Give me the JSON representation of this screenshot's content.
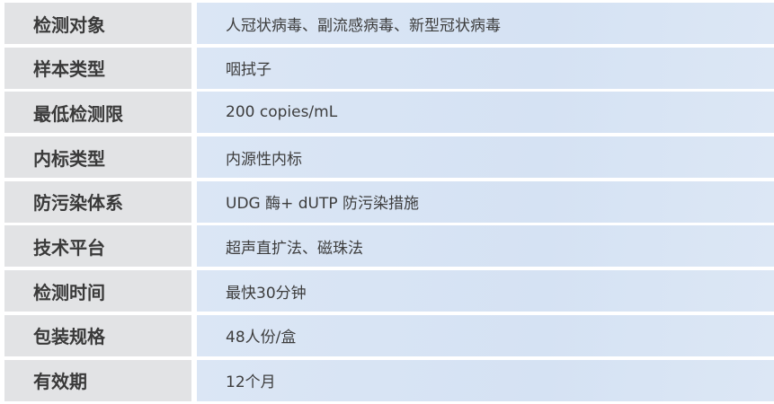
{
  "rows": [
    {
      "label": "检测对象",
      "value": "人冠状病毒、副流感病毒、新型冠状病毒"
    },
    {
      "label": "样本类型",
      "value": "咽拭子"
    },
    {
      "label": "最低检测限",
      "value": "200 copies/mL"
    },
    {
      "label": "内标类型",
      "value": "内源性内标"
    },
    {
      "label": "防污染体系",
      "value": "UDG 酶+ dUTP 防污染措施"
    },
    {
      "label": "技术平台",
      "value": "超声直扩法、磁珠法"
    },
    {
      "label": "检测时间",
      "value": "最快30分钟"
    },
    {
      "label": "包装规格",
      "value": "48人份/盒"
    },
    {
      "label": "有效期",
      "value": "12个月"
    }
  ]
}
